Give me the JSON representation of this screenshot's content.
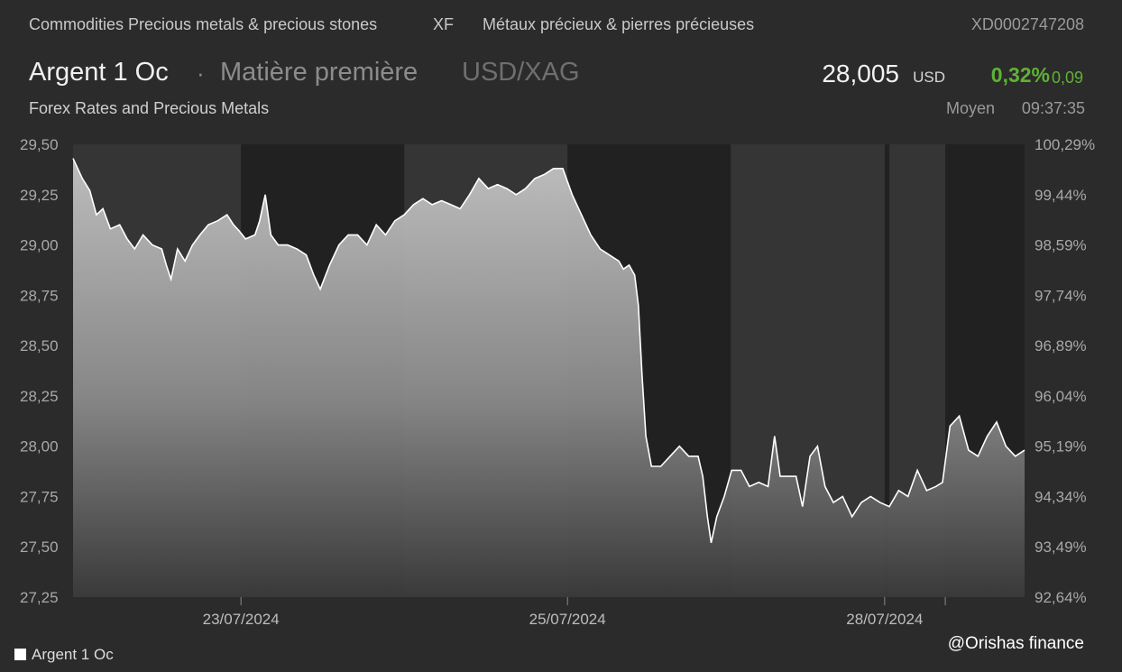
{
  "header": {
    "category_en": "Commodities Precious metals & precious stones",
    "market_code": "XF",
    "category_fr": "Métaux précieux & pierres précieuses",
    "isin": "XD0002747208"
  },
  "instrument": {
    "name": "Argent 1 Oc",
    "separator": "·",
    "type": "Matière première",
    "pair": "USD/XAG",
    "source": "Forex Rates and Precious Metals"
  },
  "quote": {
    "price": "28,005",
    "currency": "USD",
    "change_pct": "0,32%",
    "change_abs": "0,09",
    "price_type": "Moyen",
    "time": "09:37:35"
  },
  "colors": {
    "background": "#2b2b2b",
    "plot_background": "#212121",
    "session_band": "#353535",
    "line": "#ffffff",
    "positive": "#5fb234"
  },
  "chart_data": {
    "type": "area",
    "series_name": "Argent 1 Oc",
    "y_ticks": [
      "29,50",
      "29,25",
      "29,00",
      "28,75",
      "28,50",
      "28,25",
      "28,00",
      "27,75",
      "27,50",
      "27,25"
    ],
    "y2_ticks": [
      "100,29%",
      "99,44%",
      "98,59%",
      "97,74%",
      "96,89%",
      "96,04%",
      "95,19%",
      "94,34%",
      "93,49%",
      "92,64%"
    ],
    "ylim": [
      27.25,
      29.5
    ],
    "x_tick_labels": [
      "23/07/2024",
      "25/07/2024",
      "28/07/2024"
    ],
    "x_tick_positions": [
      0.18,
      0.53,
      0.87
    ],
    "session_bands": [
      [
        0,
        0.18
      ],
      [
        0.355,
        0.53
      ],
      [
        0.705,
        0.87
      ],
      [
        0.875,
        0.935
      ]
    ],
    "points": [
      [
        0.0,
        29.43
      ],
      [
        0.01,
        29.33
      ],
      [
        0.018,
        29.27
      ],
      [
        0.025,
        29.15
      ],
      [
        0.032,
        29.18
      ],
      [
        0.04,
        29.08
      ],
      [
        0.05,
        29.1
      ],
      [
        0.058,
        29.03
      ],
      [
        0.066,
        28.98
      ],
      [
        0.075,
        29.05
      ],
      [
        0.085,
        29.0
      ],
      [
        0.095,
        28.98
      ],
      [
        0.1,
        28.9
      ],
      [
        0.105,
        28.83
      ],
      [
        0.112,
        28.98
      ],
      [
        0.12,
        28.92
      ],
      [
        0.128,
        29.0
      ],
      [
        0.136,
        29.05
      ],
      [
        0.145,
        29.1
      ],
      [
        0.155,
        29.12
      ],
      [
        0.165,
        29.15
      ],
      [
        0.172,
        29.1
      ],
      [
        0.178,
        29.07
      ],
      [
        0.185,
        29.03
      ],
      [
        0.195,
        29.05
      ],
      [
        0.2,
        29.12
      ],
      [
        0.206,
        29.25
      ],
      [
        0.212,
        29.05
      ],
      [
        0.22,
        29.0
      ],
      [
        0.23,
        29.0
      ],
      [
        0.24,
        28.98
      ],
      [
        0.25,
        28.95
      ],
      [
        0.258,
        28.85
      ],
      [
        0.265,
        28.78
      ],
      [
        0.275,
        28.9
      ],
      [
        0.285,
        29.0
      ],
      [
        0.295,
        29.05
      ],
      [
        0.305,
        29.05
      ],
      [
        0.315,
        29.0
      ],
      [
        0.325,
        29.1
      ],
      [
        0.335,
        29.05
      ],
      [
        0.345,
        29.12
      ],
      [
        0.355,
        29.15
      ],
      [
        0.365,
        29.2
      ],
      [
        0.375,
        29.23
      ],
      [
        0.385,
        29.2
      ],
      [
        0.395,
        29.22
      ],
      [
        0.405,
        29.2
      ],
      [
        0.415,
        29.18
      ],
      [
        0.425,
        29.25
      ],
      [
        0.435,
        29.33
      ],
      [
        0.445,
        29.28
      ],
      [
        0.455,
        29.3
      ],
      [
        0.465,
        29.28
      ],
      [
        0.475,
        29.25
      ],
      [
        0.485,
        29.28
      ],
      [
        0.495,
        29.33
      ],
      [
        0.505,
        29.35
      ],
      [
        0.515,
        29.38
      ],
      [
        0.525,
        29.38
      ],
      [
        0.535,
        29.25
      ],
      [
        0.545,
        29.15
      ],
      [
        0.555,
        29.05
      ],
      [
        0.565,
        28.98
      ],
      [
        0.575,
        28.95
      ],
      [
        0.585,
        28.92
      ],
      [
        0.59,
        28.88
      ],
      [
        0.596,
        28.9
      ],
      [
        0.602,
        28.85
      ],
      [
        0.606,
        28.7
      ],
      [
        0.61,
        28.35
      ],
      [
        0.614,
        28.05
      ],
      [
        0.62,
        27.9
      ],
      [
        0.63,
        27.9
      ],
      [
        0.64,
        27.95
      ],
      [
        0.65,
        28.0
      ],
      [
        0.66,
        27.95
      ],
      [
        0.67,
        27.95
      ],
      [
        0.675,
        27.85
      ],
      [
        0.68,
        27.65
      ],
      [
        0.684,
        27.52
      ],
      [
        0.69,
        27.65
      ],
      [
        0.698,
        27.75
      ],
      [
        0.706,
        27.88
      ],
      [
        0.716,
        27.88
      ],
      [
        0.725,
        27.8
      ],
      [
        0.735,
        27.82
      ],
      [
        0.745,
        27.8
      ],
      [
        0.752,
        28.05
      ],
      [
        0.758,
        27.85
      ],
      [
        0.766,
        27.85
      ],
      [
        0.775,
        27.85
      ],
      [
        0.782,
        27.7
      ],
      [
        0.79,
        27.95
      ],
      [
        0.798,
        28.0
      ],
      [
        0.806,
        27.8
      ],
      [
        0.815,
        27.72
      ],
      [
        0.825,
        27.75
      ],
      [
        0.835,
        27.65
      ],
      [
        0.845,
        27.72
      ],
      [
        0.855,
        27.75
      ],
      [
        0.865,
        27.72
      ],
      [
        0.875,
        27.7
      ],
      [
        0.885,
        27.78
      ],
      [
        0.895,
        27.75
      ],
      [
        0.905,
        27.88
      ],
      [
        0.915,
        27.78
      ],
      [
        0.925,
        27.8
      ],
      [
        0.932,
        27.82
      ],
      [
        0.94,
        28.1
      ],
      [
        0.95,
        28.15
      ],
      [
        0.96,
        27.98
      ],
      [
        0.97,
        27.95
      ],
      [
        0.98,
        28.05
      ],
      [
        0.99,
        28.12
      ],
      [
        1.0,
        28.0
      ],
      [
        1.01,
        27.95
      ],
      [
        1.02,
        27.98
      ]
    ]
  },
  "legend": {
    "label": "Argent 1 Oc"
  },
  "watermark": "@Orishas finance"
}
